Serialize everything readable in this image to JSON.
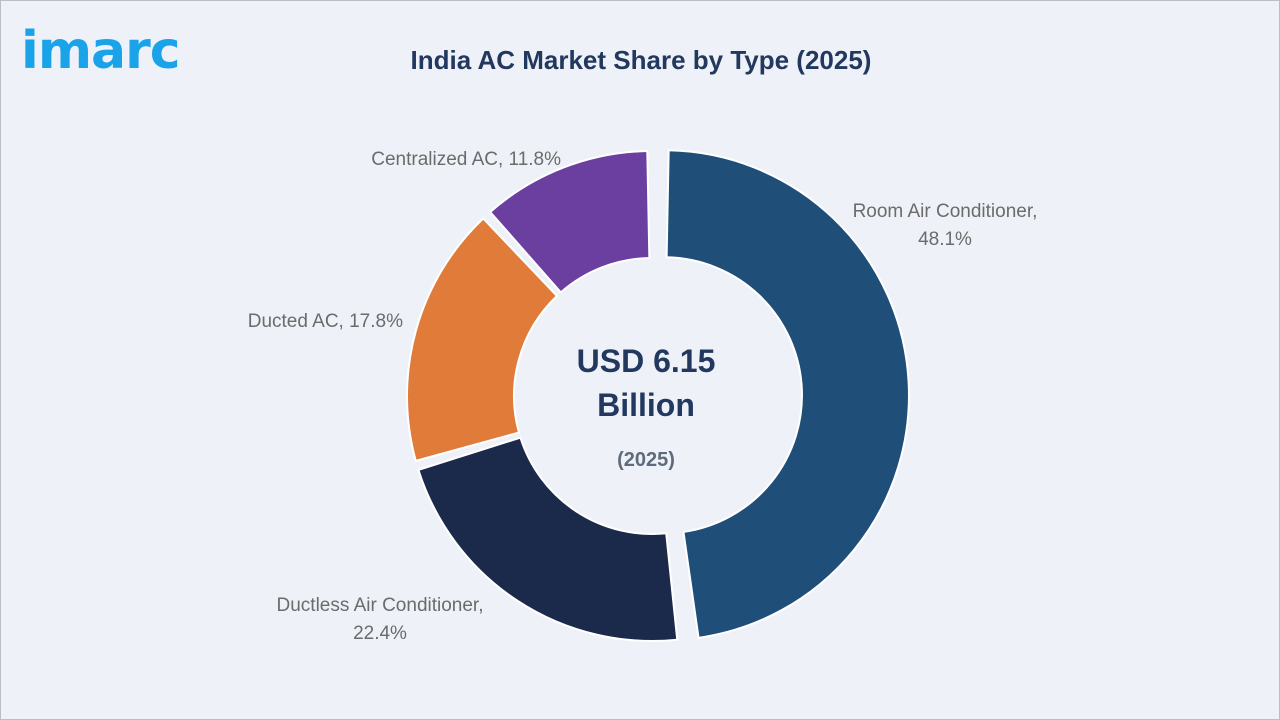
{
  "brand": {
    "logo_text": "imarc"
  },
  "colors": {
    "background": "#eef2f8",
    "title": "#22385e",
    "logo": "#1aa3e8",
    "label": "#6b6b6b"
  },
  "chart_data": {
    "type": "pie",
    "variant": "donut",
    "title": "India AC Market Share by Type (2025)",
    "center": {
      "line1": "USD 6.15",
      "line2": "Billion",
      "line3": "(2025)"
    },
    "unit": "%",
    "slices": [
      {
        "label": "Room Air Conditioner",
        "value": 48.1,
        "text1": "Room Air Conditioner,",
        "text2": "48.1%",
        "color": "#1f4e79",
        "exploded": true
      },
      {
        "label": "Ductless Air Conditioner",
        "value": 22.4,
        "text1": "Ductless Air Conditioner,",
        "text2": "22.4%",
        "color": "#1b2a4a",
        "exploded": false
      },
      {
        "label": "Ducted AC",
        "value": 17.8,
        "text1": "Ducted AC, 17.8%",
        "text2": "",
        "color": "#e07b39",
        "exploded": false
      },
      {
        "label": "Centralized AC",
        "value": 11.8,
        "text1": "Centralized AC, 11.8%",
        "text2": "",
        "color": "#6b3fa0",
        "exploded": false
      }
    ],
    "start_angle_deg": 0,
    "direction": "clockwise"
  }
}
